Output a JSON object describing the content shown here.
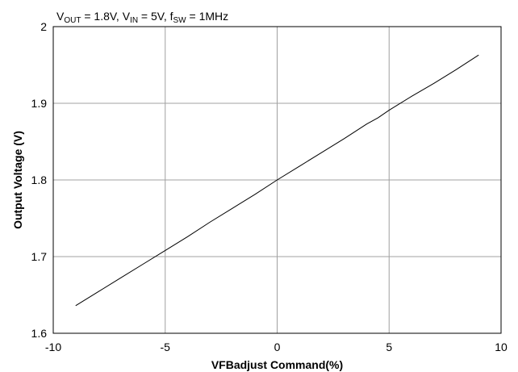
{
  "chart_data": {
    "type": "line",
    "title": "",
    "annotation": {
      "v_out_label": "V",
      "v_out_sub": "OUT",
      "v_out_value": " = 1.8V, ",
      "v_in_label": "V",
      "v_in_sub": "IN",
      "v_in_value": " = 5V, ",
      "f_sw_label": "f",
      "f_sw_sub": "SW",
      "f_sw_value": " = 1MHz"
    },
    "xlabel": "VFBadjust Command(%)",
    "ylabel": "Output Voltage (V)",
    "xlim": [
      -10,
      10
    ],
    "ylim": [
      1.6,
      2.0
    ],
    "x_ticks": [
      -10,
      -5,
      0,
      5,
      10
    ],
    "y_ticks": [
      1.6,
      1.7,
      1.8,
      1.9,
      2.0
    ],
    "x_tick_labels": [
      "-10",
      "-5",
      "0",
      "5",
      "10"
    ],
    "y_tick_labels": [
      "1.6",
      "1.7",
      "1.8",
      "1.9",
      "2"
    ],
    "grid": true,
    "colors": {
      "line": "#000000",
      "grid": "#a0a0a0",
      "frame": "#000000"
    },
    "series": [
      {
        "x": [
          -9,
          -8,
          -7,
          -6,
          -5,
          -4,
          -3,
          -2,
          -1,
          0,
          1,
          2,
          3,
          4,
          4.5,
          5,
          6,
          7,
          8,
          9
        ],
        "y": [
          1.636,
          1.654,
          1.672,
          1.69,
          1.708,
          1.726,
          1.745,
          1.763,
          1.781,
          1.8,
          1.818,
          1.836,
          1.854,
          1.873,
          1.881,
          1.891,
          1.909,
          1.926,
          1.944,
          1.963
        ]
      }
    ]
  }
}
